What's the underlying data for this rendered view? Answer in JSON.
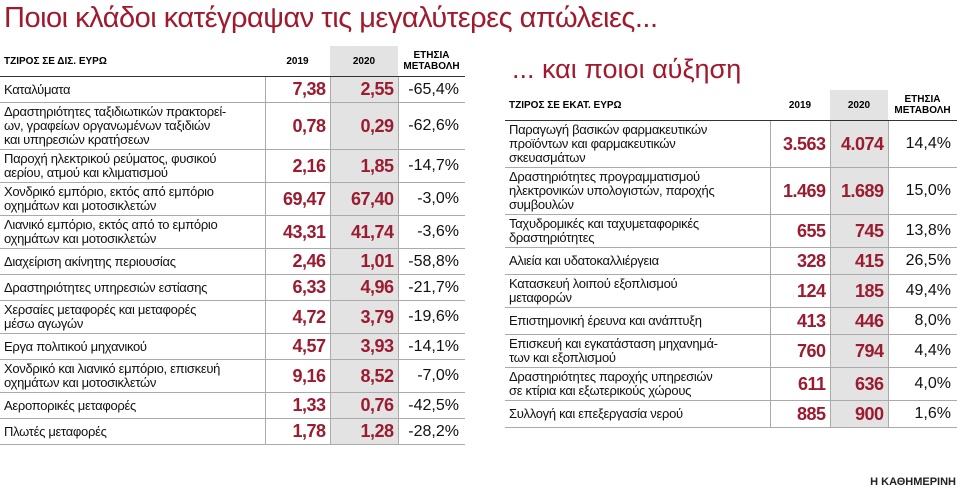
{
  "header": {
    "title": "Ποιοι κλάδοι κατέγραψαν τις μεγαλύτερες απώλειες...",
    "subtitle": "... και ποιοι αύξηση"
  },
  "left_table": {
    "columns": [
      "ΤΖΙΡΟΣ ΣΕ ΔΙΣ. ΕΥΡΩ",
      "2019",
      "2020",
      "ΕΤΗΣΙΑ\nΜΕΤΑΒΟΛΗ"
    ],
    "rows": [
      [
        "Καταλύματα",
        "7,38",
        "2,55",
        "-65,4%"
      ],
      [
        "Δραστηριότητες ταξιδιωτικών πρακτορεί-\nων, γραφείων οργανωμένων ταξιδιών\nκαι υπηρεσιών κρατήσεων",
        "0,78",
        "0,29",
        "-62,6%"
      ],
      [
        "Παροχή ηλεκτρικού ρεύματος, φυσικού\nαερίου, ατμού και κλιματισμού",
        "2,16",
        "1,85",
        "-14,7%"
      ],
      [
        "Χονδρικό εμπόριο, εκτός από εμπόριο\nοχημάτων και μοτοσικλετών",
        "69,47",
        "67,40",
        "-3,0%"
      ],
      [
        "Λιανικό εμπόριο, εκτός από το εμπόριο\nοχημάτων και μοτοσικλετών",
        "43,31",
        "41,74",
        "-3,6%"
      ],
      [
        "Διαχείριση ακίνητης περιουσίας",
        "2,46",
        "1,01",
        "-58,8%"
      ],
      [
        "Δραστηριότητες υπηρεσιών εστίασης",
        "6,33",
        "4,96",
        "-21,7%"
      ],
      [
        "Χερσαίες μεταφορές και μεταφορές\nμέσω αγωγών",
        "4,72",
        "3,79",
        "-19,6%"
      ],
      [
        "Εργα πολιτικού μηχανικού",
        "4,57",
        "3,93",
        "-14,1%"
      ],
      [
        "Χονδρικό και λιανικό εμπόριο, επισκευή\nοχημάτων και μοτοσικλετών",
        "9,16",
        "8,52",
        "-7,0%"
      ],
      [
        "Αεροπορικές μεταφορές",
        "1,33",
        "0,76",
        "-42,5%"
      ],
      [
        "Πλωτές μεταφορές",
        "1,78",
        "1,28",
        "-28,2%"
      ]
    ]
  },
  "right_table": {
    "columns": [
      "ΤΖΙΡΟΣ ΣΕ ΕΚΑΤ. ΕΥΡΩ",
      "2019",
      "2020",
      "ΕΤΗΣΙΑ\nΜΕΤΑΒΟΛΗ"
    ],
    "rows": [
      [
        "Παραγωγή βασικών φαρμακευτικών\nπροϊόντων και φαρμακευτικών\nσκευασμάτων",
        "3.563",
        "4.074",
        "14,4%"
      ],
      [
        "Δραστηριότητες προγραμματισμού\nηλεκτρονικών υπολογιστών, παροχής\nσυμβουλών",
        "1.469",
        "1.689",
        "15,0%"
      ],
      [
        "Ταχυδρομικές και ταχυμεταφορικές\nδραστηριότητες",
        "655",
        "745",
        "13,8%"
      ],
      [
        "Αλιεία και υδατοκαλλιέργεια",
        "328",
        "415",
        "26,5%"
      ],
      [
        "Κατασκευή λοιπού εξοπλισμού\nμεταφορών",
        "124",
        "185",
        "49,4%"
      ],
      [
        "Επιστημονική έρευνα και ανάπτυξη",
        "413",
        "446",
        "8,0%"
      ],
      [
        "Επισκευή και εγκατάσταση μηχανημά-\nτων και εξοπλισμού",
        "760",
        "794",
        "4,4%"
      ],
      [
        "Δραστηριότητες παροχής υπηρεσιών\nσε κτίρια και εξωτερικούς χώρους",
        "611",
        "636",
        "4,0%"
      ],
      [
        "Συλλογή και επεξεργασία νερού",
        "885",
        "900",
        "1,6%"
      ]
    ]
  },
  "footer": {
    "source": "Η ΚΑΘΗΜΕΡΙΝΗ"
  }
}
